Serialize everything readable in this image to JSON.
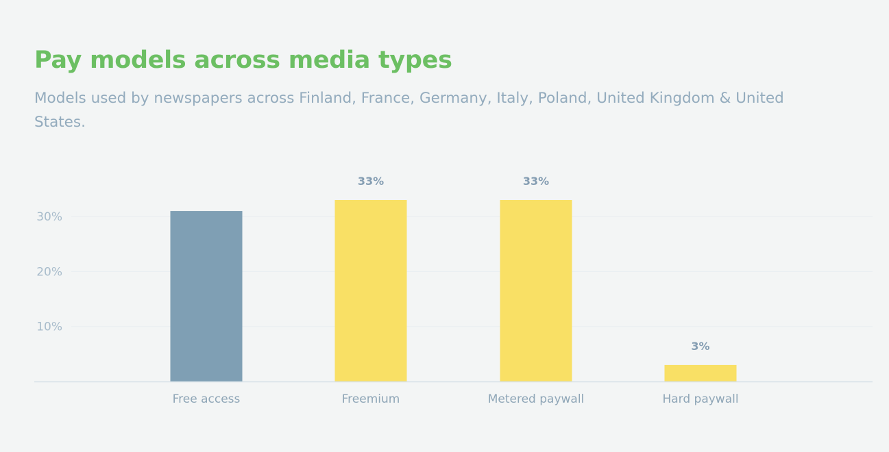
{
  "header": {
    "title": "Pay models across media types",
    "subtitle": "Models used by newspapers across Finland, France, Germany, Italy, Poland, United Kingdom & United States."
  },
  "colors": {
    "title": "#6cbf63",
    "subtitle": "#93abbd",
    "free_bar": "#7f9fb4",
    "paid_bar": "#f9e065",
    "axis": "#d7e1e8",
    "grid": "#e9eef1",
    "value_label": "#849db2",
    "background": "#f3f5f5"
  },
  "chart_data": {
    "type": "bar",
    "title": "Pay models across media types",
    "subtitle": "Models used by newspapers across Finland, France, Germany, Italy, Poland, United Kingdom & United States.",
    "categories": [
      "Free access",
      "Freemium",
      "Metered paywall",
      "Hard paywall"
    ],
    "values": [
      31,
      33,
      33,
      3
    ],
    "value_labels": [
      "",
      "33%",
      "33%",
      "3%"
    ],
    "bar_colors": [
      "#7f9fb4",
      "#f9e065",
      "#f9e065",
      "#f9e065"
    ],
    "yticks": [
      {
        "value": 10,
        "label": "10%"
      },
      {
        "value": 20,
        "label": "20%"
      },
      {
        "value": 30,
        "label": "30%"
      }
    ],
    "ylim": [
      0,
      35
    ],
    "xlabel": "",
    "ylabel": "",
    "grid": true,
    "legend": "none"
  }
}
